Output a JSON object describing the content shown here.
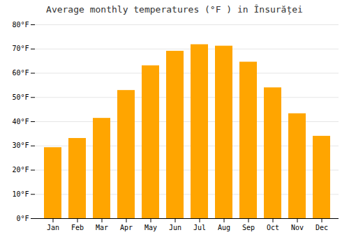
{
  "chart_data": {
    "type": "bar",
    "title": "Average monthly temperatures (°F ) in Însurăței",
    "categories": [
      "Jan",
      "Feb",
      "Mar",
      "Apr",
      "May",
      "Jun",
      "Jul",
      "Aug",
      "Sep",
      "Oct",
      "Nov",
      "Dec"
    ],
    "values": [
      29.3,
      33.1,
      41.4,
      52.9,
      63.1,
      69.1,
      71.8,
      71.2,
      64.6,
      54.0,
      43.3,
      34.0
    ],
    "color": "#FFA500",
    "ylim": [
      0,
      80
    ],
    "yticks": [
      {
        "value": 0,
        "label": "0°F"
      },
      {
        "value": 10,
        "label": "10°F"
      },
      {
        "value": 20,
        "label": "20°F"
      },
      {
        "value": 30,
        "label": "30°F"
      },
      {
        "value": 40,
        "label": "40°F"
      },
      {
        "value": 50,
        "label": "50°F"
      },
      {
        "value": 60,
        "label": "60°F"
      },
      {
        "value": 70,
        "label": "70°F"
      },
      {
        "value": 80,
        "label": "80°F"
      }
    ],
    "grid": true
  }
}
